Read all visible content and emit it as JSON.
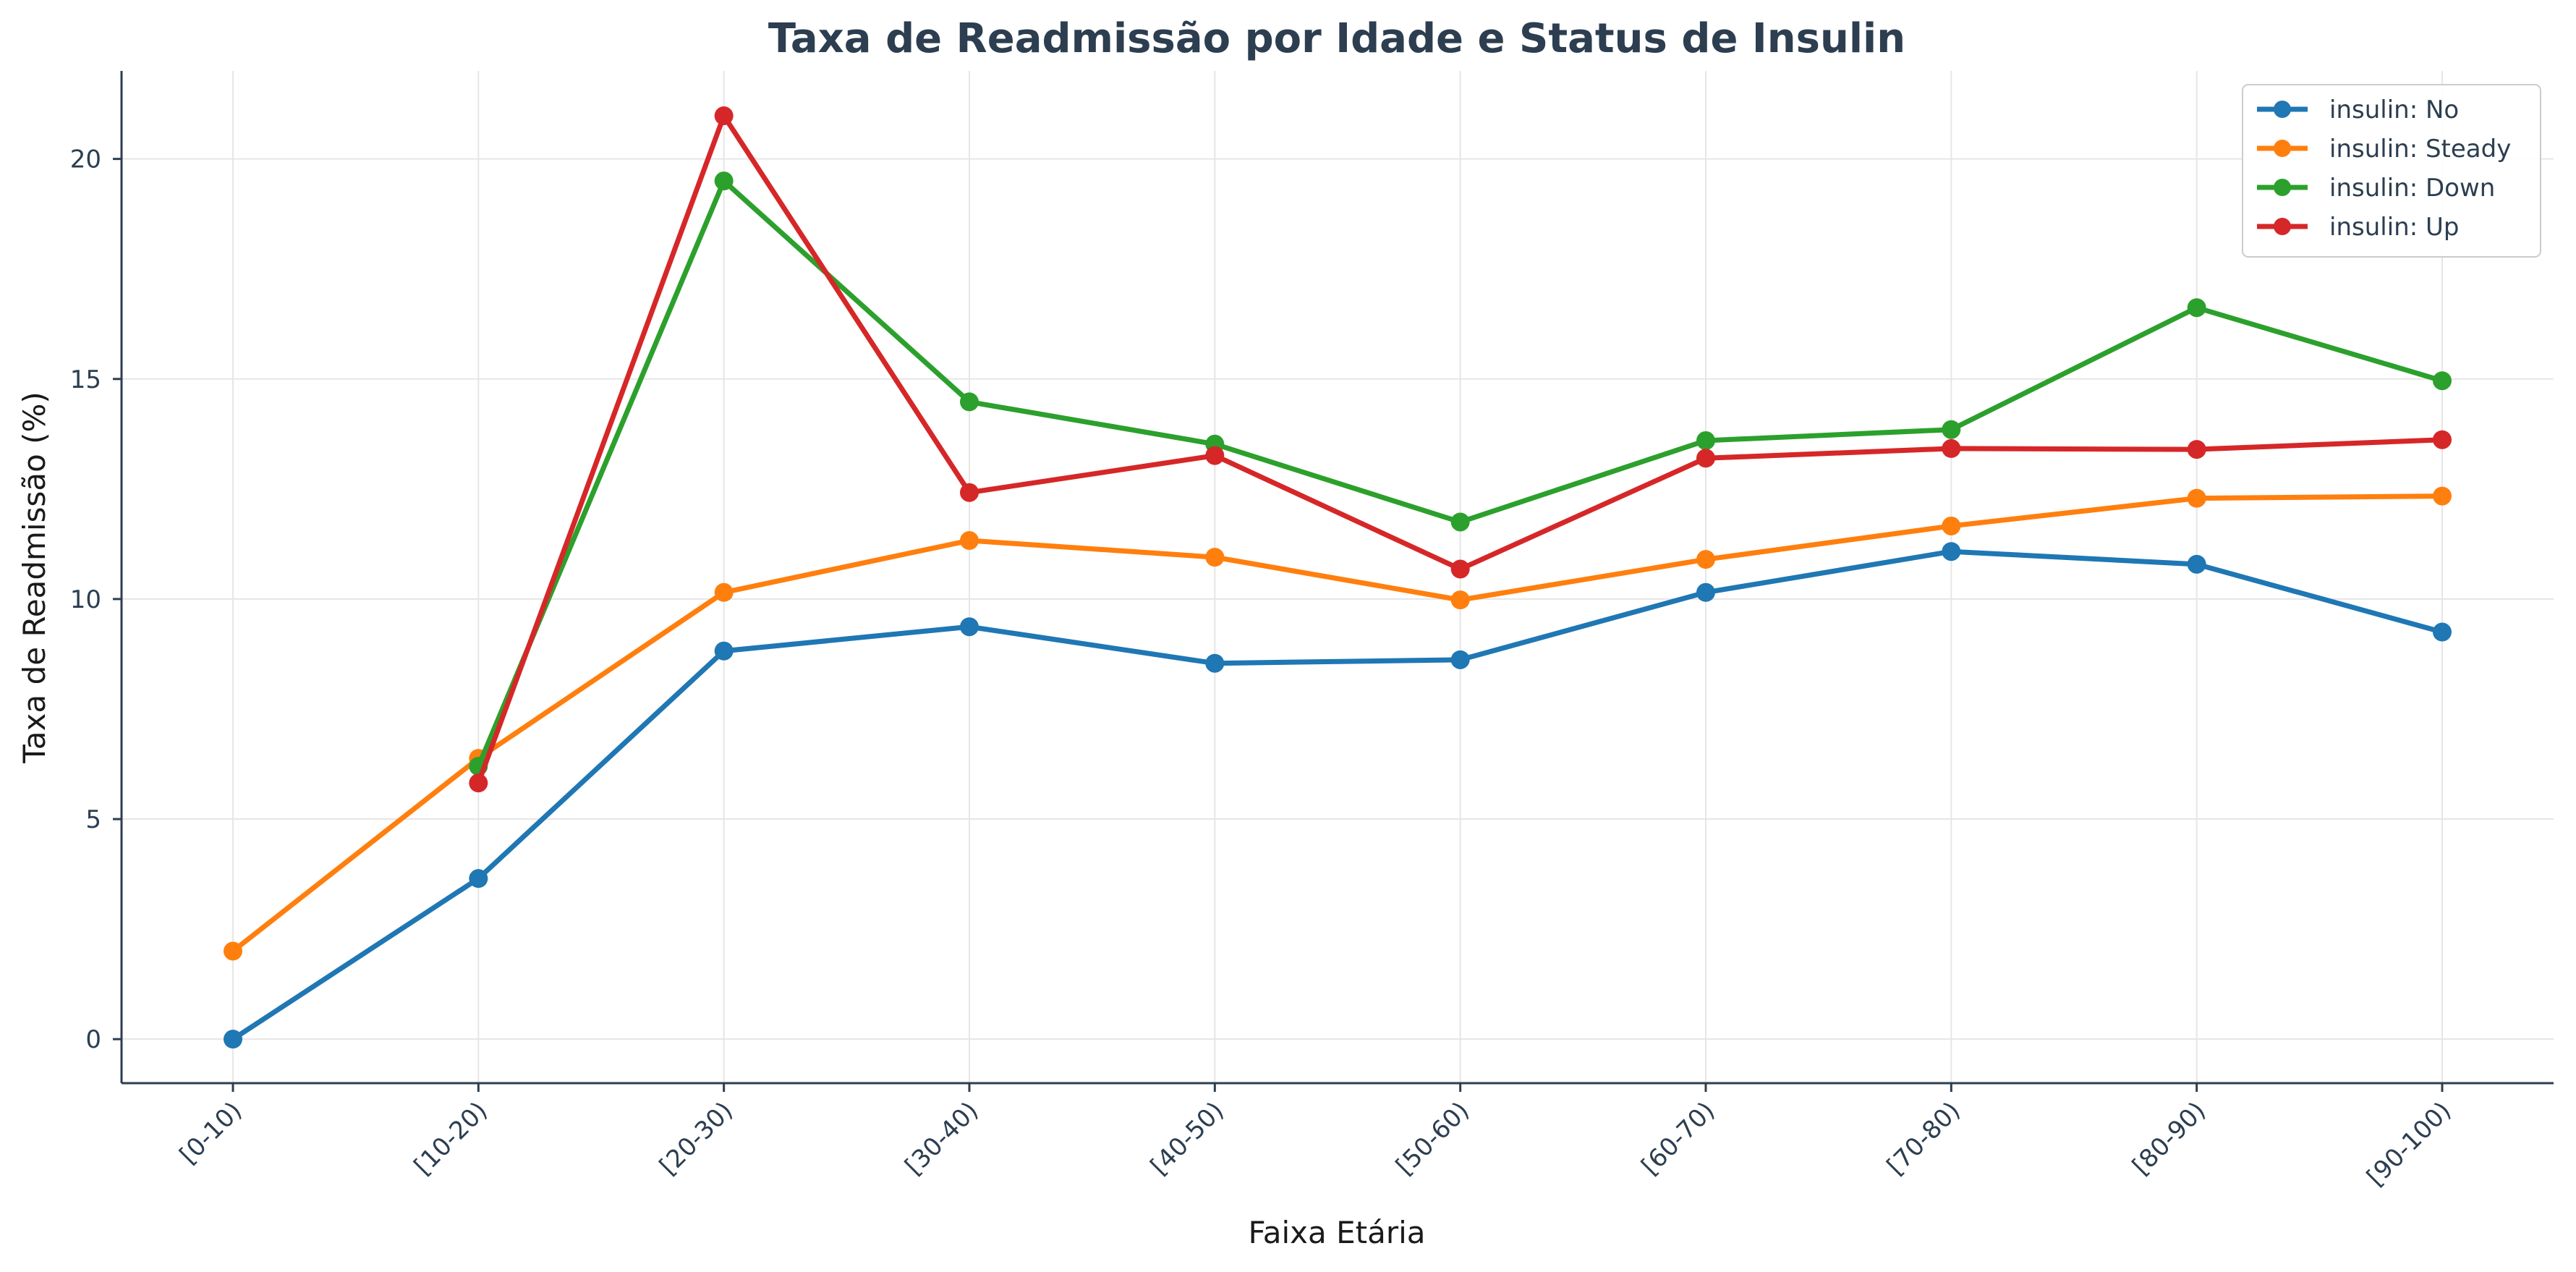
{
  "chart_data": {
    "type": "line",
    "title": "Taxa de Readmissão por Idade e Status de Insulin",
    "xlabel": "Faixa Etária",
    "ylabel": "Taxa de Readmissão (%)",
    "categories": [
      "[0-10)",
      "[10-20)",
      "[20-30)",
      "[30-40)",
      "[40-50)",
      "[50-60)",
      "[60-70)",
      "[70-80)",
      "[80-90)",
      "[90-100)"
    ],
    "ylim": [
      -1,
      22
    ],
    "yticks": [
      0,
      5,
      10,
      15,
      20
    ],
    "grid": true,
    "legend_position": "top-right",
    "series": [
      {
        "name": "insulin: No",
        "color": "#1f77b4",
        "values": [
          0.0,
          3.65,
          8.82,
          9.37,
          8.54,
          8.62,
          10.15,
          11.08,
          10.79,
          9.25
        ]
      },
      {
        "name": "insulin: Steady",
        "color": "#ff7f0e",
        "values": [
          2.0,
          6.38,
          10.15,
          11.33,
          10.95,
          9.98,
          10.9,
          11.66,
          12.29,
          12.34
        ]
      },
      {
        "name": "insulin: Down",
        "color": "#2ca02c",
        "values": [
          null,
          6.2,
          19.5,
          14.48,
          13.52,
          11.75,
          13.6,
          13.85,
          16.62,
          14.96
        ]
      },
      {
        "name": "insulin: Up",
        "color": "#d62728",
        "values": [
          null,
          5.82,
          20.98,
          12.42,
          13.26,
          10.68,
          13.2,
          13.42,
          13.4,
          13.62
        ]
      }
    ]
  }
}
